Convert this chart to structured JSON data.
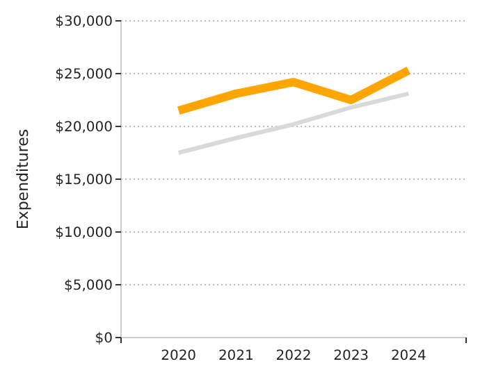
{
  "chart_data": {
    "type": "line",
    "ylabel": "Expenditures",
    "x": [
      2020,
      2021,
      2022,
      2023,
      2024
    ],
    "xlim": [
      2019,
      2025
    ],
    "xticks": [
      2020,
      2021,
      2022,
      2023,
      2024
    ],
    "ylim": [
      0,
      30000
    ],
    "yticks": [
      {
        "value": 0,
        "label": "$0"
      },
      {
        "value": 5000,
        "label": "$5,000"
      },
      {
        "value": 10000,
        "label": "$10,000"
      },
      {
        "value": 15000,
        "label": "$15,000"
      },
      {
        "value": 20000,
        "label": "$20,000"
      },
      {
        "value": 25000,
        "label": "$25,000"
      },
      {
        "value": 30000,
        "label": "$30,000"
      }
    ],
    "grid": "y",
    "line_style": "solid",
    "marker": "none",
    "series": [
      {
        "color": "#d9d9d9",
        "values": [
          17500,
          18900,
          20200,
          21800,
          23100
        ]
      },
      {
        "color": "#ffa500",
        "values": [
          21500,
          23100,
          24200,
          22500,
          25300
        ]
      }
    ]
  }
}
